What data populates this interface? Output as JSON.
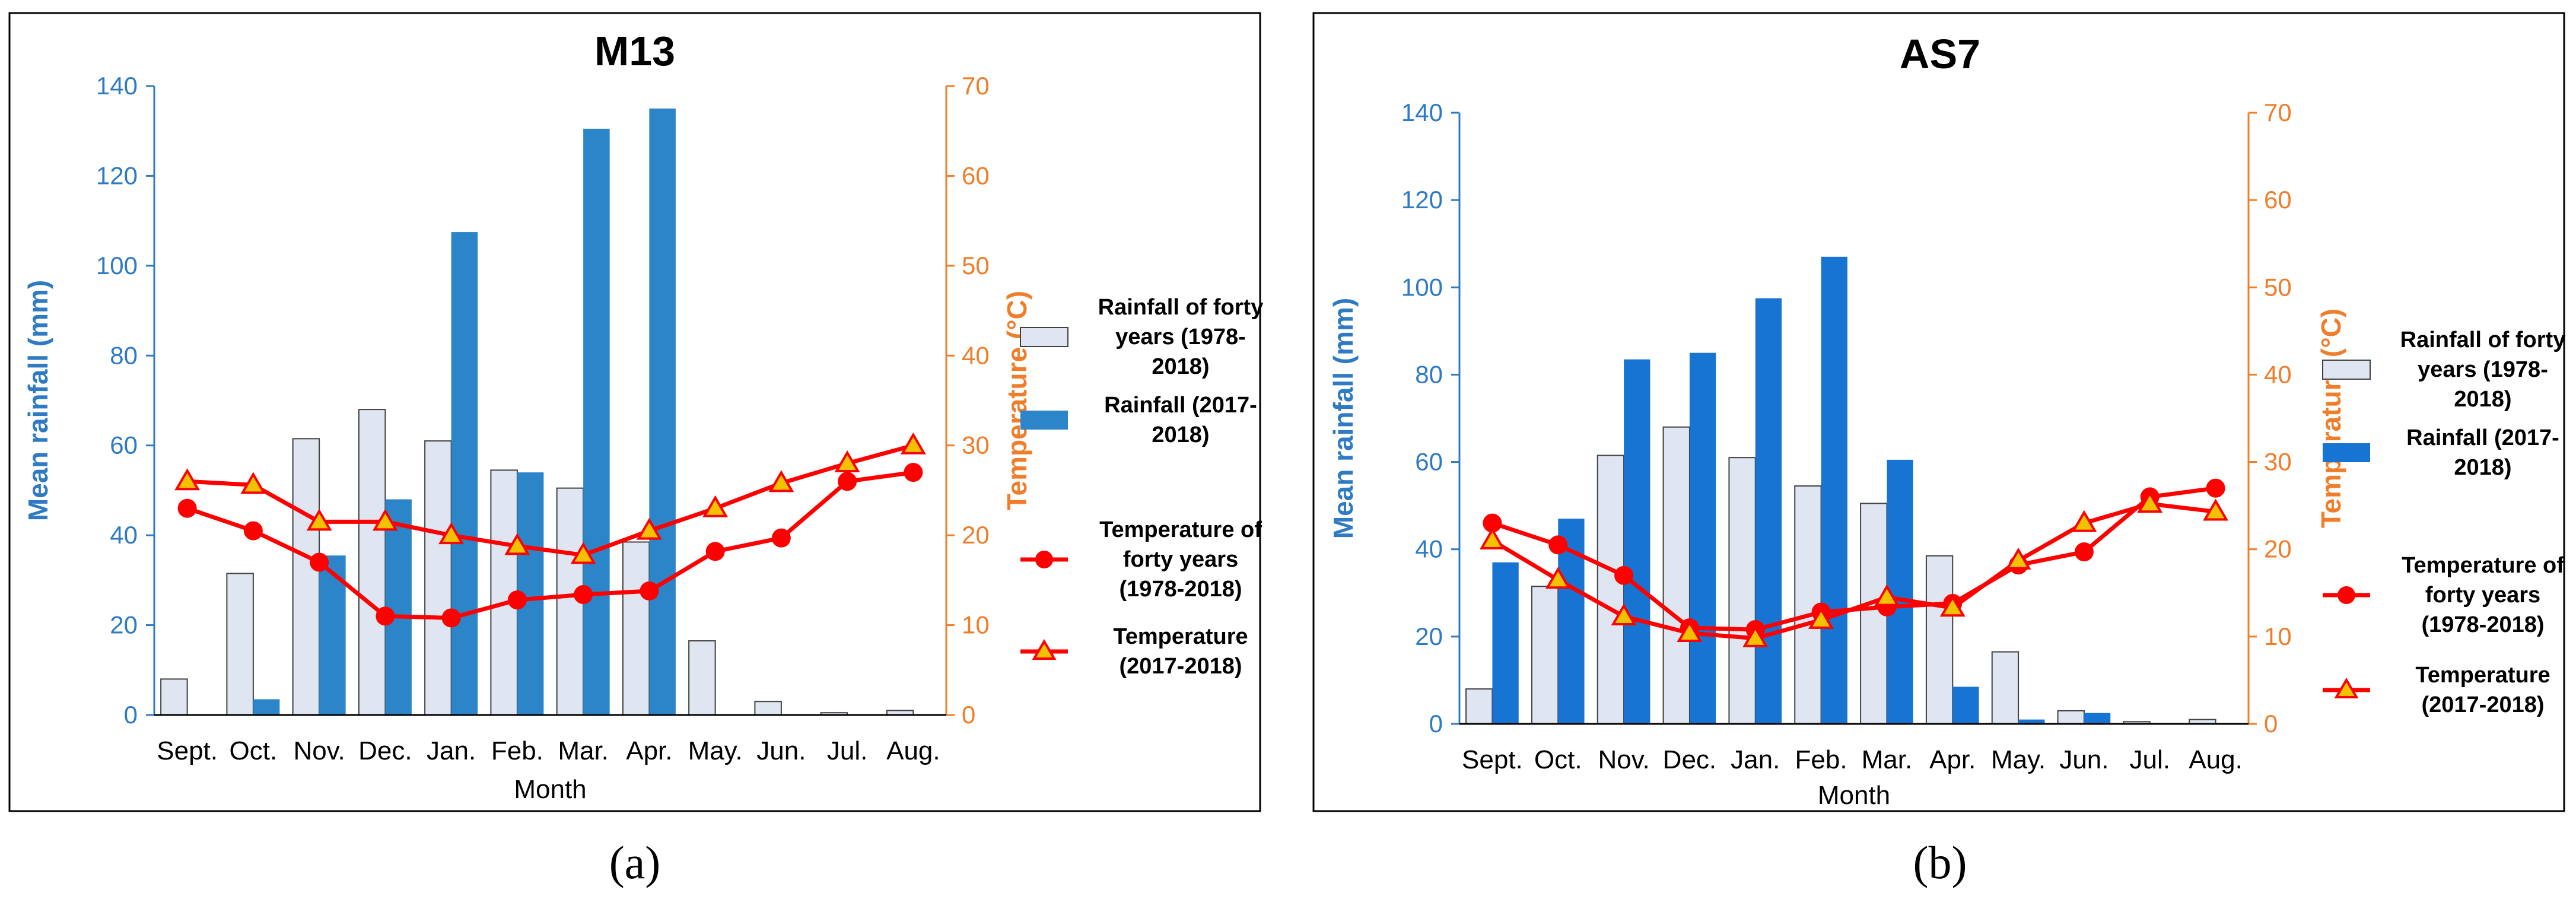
{
  "colors": {
    "left_axis": "#2e7bc4",
    "right_axis": "#f07d2a",
    "rain_avg_fill": "#dfe6f1",
    "rain_avg_stroke": "#404040",
    "temp_line": "#ff0000",
    "triangle_fill": "#f2c200"
  },
  "captions": [
    "(a)",
    "(b)"
  ],
  "chart_data": [
    {
      "type": "bar",
      "title": "M13",
      "xlabel": "Month",
      "ylabel": "Mean rainfall (mm)",
      "y2label": "Temperature (°C)",
      "ylim": [
        0,
        140
      ],
      "y2lim": [
        0,
        70
      ],
      "yticks": [
        "0",
        "20",
        "40",
        "60",
        "80",
        "100",
        "120",
        "140"
      ],
      "y2ticks": [
        "0",
        "10",
        "20",
        "30",
        "40",
        "50",
        "60",
        "70"
      ],
      "categories": [
        "Sept.",
        "Oct.",
        "Nov.",
        "Dec.",
        "Jan.",
        "Feb.",
        "Mar.",
        "Apr.",
        "May.",
        "Jun.",
        "Jul.",
        "Aug."
      ],
      "rain_color": "#2b85c8",
      "series": [
        {
          "name": "Rainfall of forty years (1978-2018)",
          "legend_lines": [
            "Rainfall of forty",
            "years (1978-",
            "2018)"
          ],
          "kind": "bar",
          "axis": "left",
          "values": [
            8,
            31.5,
            61.5,
            68,
            61,
            54.5,
            50.5,
            38.5,
            16.5,
            3,
            0.5,
            1
          ]
        },
        {
          "name": "Rainfall (2017-2018)",
          "legend_lines": [
            "Rainfall (2017-",
            "2018)"
          ],
          "kind": "bar",
          "axis": "left",
          "values": [
            0,
            3.5,
            35.5,
            48,
            107.5,
            54,
            130.5,
            135,
            0,
            0,
            0,
            0
          ]
        },
        {
          "name": "Temperature of forty years (1978-2018)",
          "legend_lines": [
            "Temperature of",
            "forty years",
            "(1978-2018)"
          ],
          "kind": "line",
          "marker": "circle",
          "axis": "right",
          "values": [
            23,
            20.5,
            17,
            11,
            10.8,
            12.8,
            13.4,
            13.8,
            18.2,
            19.7,
            26,
            27
          ]
        },
        {
          "name": "Temperature (2017-2018)",
          "legend_lines": [
            "Temperature",
            "(2017-2018)"
          ],
          "kind": "line",
          "marker": "triangle",
          "axis": "right",
          "values": [
            26,
            25.6,
            21.5,
            21.5,
            20,
            18.8,
            17.8,
            20.5,
            23,
            25.8,
            28,
            30
          ]
        }
      ]
    },
    {
      "type": "bar",
      "title": "AS7",
      "xlabel": "Month",
      "ylabel": "Mean rainfall (mm)",
      "y2label": "Temperature (°C)",
      "ylim": [
        0,
        140
      ],
      "y2lim": [
        0,
        70
      ],
      "yticks": [
        "0",
        "20",
        "40",
        "60",
        "80",
        "100",
        "120",
        "140"
      ],
      "y2ticks": [
        "0",
        "10",
        "20",
        "30",
        "40",
        "50",
        "60",
        "70"
      ],
      "categories": [
        "Sept.",
        "Oct.",
        "Nov.",
        "Dec.",
        "Jan.",
        "Feb.",
        "Mar.",
        "Apr.",
        "May.",
        "Jun.",
        "Jul.",
        "Aug."
      ],
      "rain_color": "#1874d2",
      "series": [
        {
          "name": "Rainfall of forty years (1978-2018)",
          "legend_lines": [
            "Rainfall of forty",
            "years (1978-",
            "2018)"
          ],
          "kind": "bar",
          "axis": "left",
          "values": [
            8,
            31.5,
            61.5,
            68,
            61,
            54.5,
            50.5,
            38.5,
            16.5,
            3,
            0.5,
            1
          ]
        },
        {
          "name": "Rainfall (2017-2018)",
          "legend_lines": [
            "Rainfall (2017-",
            "2018)"
          ],
          "kind": "bar",
          "axis": "left",
          "values": [
            37,
            47,
            83.5,
            85,
            97.5,
            107,
            60.5,
            8.5,
            1,
            2.5,
            0,
            0
          ]
        },
        {
          "name": "Temperature of forty years (1978-2018)",
          "legend_lines": [
            "Temperature of",
            "forty years",
            "(1978-2018)"
          ],
          "kind": "line",
          "marker": "circle",
          "axis": "right",
          "values": [
            23,
            20.5,
            17,
            11,
            10.8,
            12.8,
            13.4,
            13.8,
            18.2,
            19.7,
            26,
            27
          ]
        },
        {
          "name": "Temperature (2017-2018)",
          "legend_lines": [
            "Temperature",
            "(2017-2018)"
          ],
          "kind": "line",
          "marker": "triangle",
          "axis": "right",
          "values": [
            21,
            16.5,
            12.3,
            10.4,
            9.8,
            11.9,
            14.5,
            13.3,
            18.7,
            23,
            25.2,
            24.3
          ]
        }
      ]
    }
  ]
}
